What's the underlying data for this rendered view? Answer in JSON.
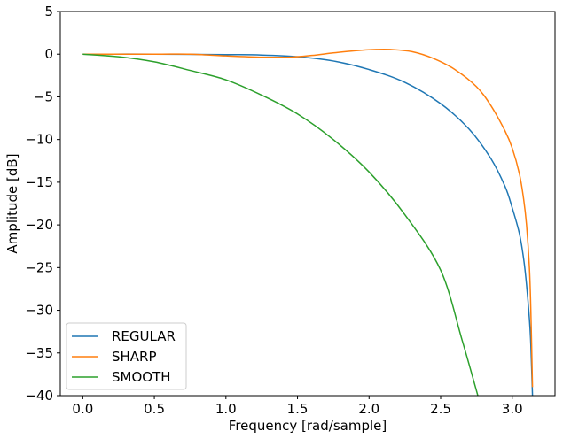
{
  "chart_data": {
    "type": "line",
    "xlabel": "Frequency [rad/sample]",
    "ylabel": "Amplitude [dB]",
    "xlim": [
      -0.157,
      3.299
    ],
    "ylim": [
      -40,
      5
    ],
    "xticks": [
      0.0,
      0.5,
      1.0,
      1.5,
      2.0,
      2.5,
      3.0
    ],
    "xtick_labels": [
      "0.0",
      "0.5",
      "1.0",
      "1.5",
      "2.0",
      "2.5",
      "3.0"
    ],
    "yticks": [
      5,
      0,
      -5,
      -10,
      -15,
      -20,
      -25,
      -30,
      -35,
      -40
    ],
    "ytick_labels": [
      "5",
      "0",
      "−5",
      "−10",
      "−15",
      "−20",
      "−25",
      "−30",
      "−35",
      "−40"
    ],
    "grid": false,
    "legend_position": "lower-left",
    "series": [
      {
        "name": "REGULAR",
        "color": "#1f77b4",
        "x": [
          0.0,
          0.5,
          1.0,
          1.25,
          1.5,
          1.75,
          2.0,
          2.25,
          2.5,
          2.7,
          2.85,
          2.95,
          3.0,
          3.05,
          3.08,
          3.1,
          3.12,
          3.13,
          3.1416
        ],
        "y": [
          0.0,
          0.0,
          -0.05,
          -0.1,
          -0.3,
          -0.8,
          -1.8,
          -3.3,
          -5.8,
          -8.8,
          -12.2,
          -15.5,
          -18.0,
          -21.0,
          -24.0,
          -27.0,
          -31.0,
          -34.0,
          -40.0
        ]
      },
      {
        "name": "SHARP",
        "color": "#ff7f0e",
        "x": [
          0.0,
          0.5,
          0.75,
          1.0,
          1.25,
          1.45,
          1.6,
          1.75,
          1.9,
          2.05,
          2.15,
          2.3,
          2.45,
          2.6,
          2.75,
          2.85,
          2.95,
          3.0,
          3.05,
          3.08,
          3.1,
          3.12,
          3.13,
          3.1416
        ],
        "y": [
          0.0,
          0.0,
          0.0,
          -0.2,
          -0.35,
          -0.35,
          -0.15,
          0.15,
          0.4,
          0.55,
          0.55,
          0.3,
          -0.5,
          -1.8,
          -3.8,
          -6.0,
          -9.0,
          -11.0,
          -14.0,
          -17.0,
          -20.0,
          -25.0,
          -30.0,
          -39.0
        ]
      },
      {
        "name": "SMOOTH",
        "color": "#2ca02c",
        "x": [
          0.0,
          0.25,
          0.5,
          0.75,
          1.0,
          1.25,
          1.5,
          1.75,
          2.0,
          2.25,
          2.5,
          2.65,
          2.76
        ],
        "y": [
          0.0,
          -0.3,
          -0.9,
          -1.9,
          -3.0,
          -4.8,
          -7.0,
          -10.0,
          -13.8,
          -18.8,
          -25.3,
          -33.5,
          -40.0
        ]
      }
    ]
  }
}
